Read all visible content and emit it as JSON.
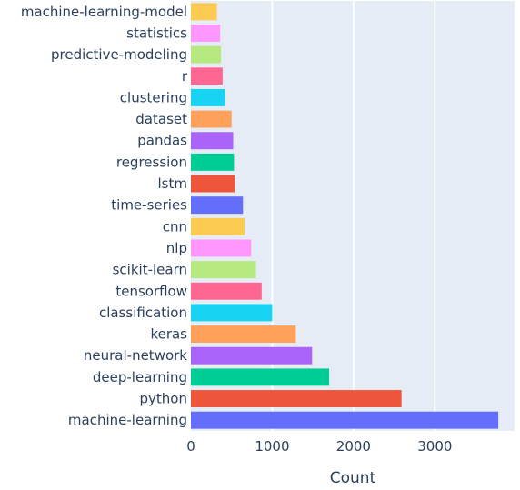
{
  "chart_data": {
    "type": "bar",
    "orientation": "horizontal",
    "categories": [
      "machine-learning",
      "python",
      "deep-learning",
      "neural-network",
      "keras",
      "classification",
      "tensorflow",
      "scikit-learn",
      "nlp",
      "cnn",
      "time-series",
      "lstm",
      "regression",
      "pandas",
      "dataset",
      "clustering",
      "r",
      "predictive-modeling",
      "statistics",
      "machine-learning-model"
    ],
    "values": [
      3780,
      2590,
      1700,
      1490,
      1290,
      1000,
      870,
      800,
      740,
      660,
      640,
      540,
      530,
      520,
      500,
      420,
      390,
      370,
      360,
      320
    ],
    "colors": [
      "#636efa",
      "#EF553B",
      "#00cc96",
      "#ab63fa",
      "#FFA15A",
      "#19d3f3",
      "#FF6692",
      "#B6E880",
      "#FF97FF",
      "#FECB52"
    ],
    "xlabel": "Count",
    "ylabel": "",
    "xlim": [
      0,
      3980
    ],
    "xticks": [
      0,
      1000,
      2000,
      3000
    ],
    "xtick_labels": [
      "0",
      "1000",
      "2000",
      "3000"
    ],
    "grid": true,
    "background": "#e5ecf6"
  }
}
